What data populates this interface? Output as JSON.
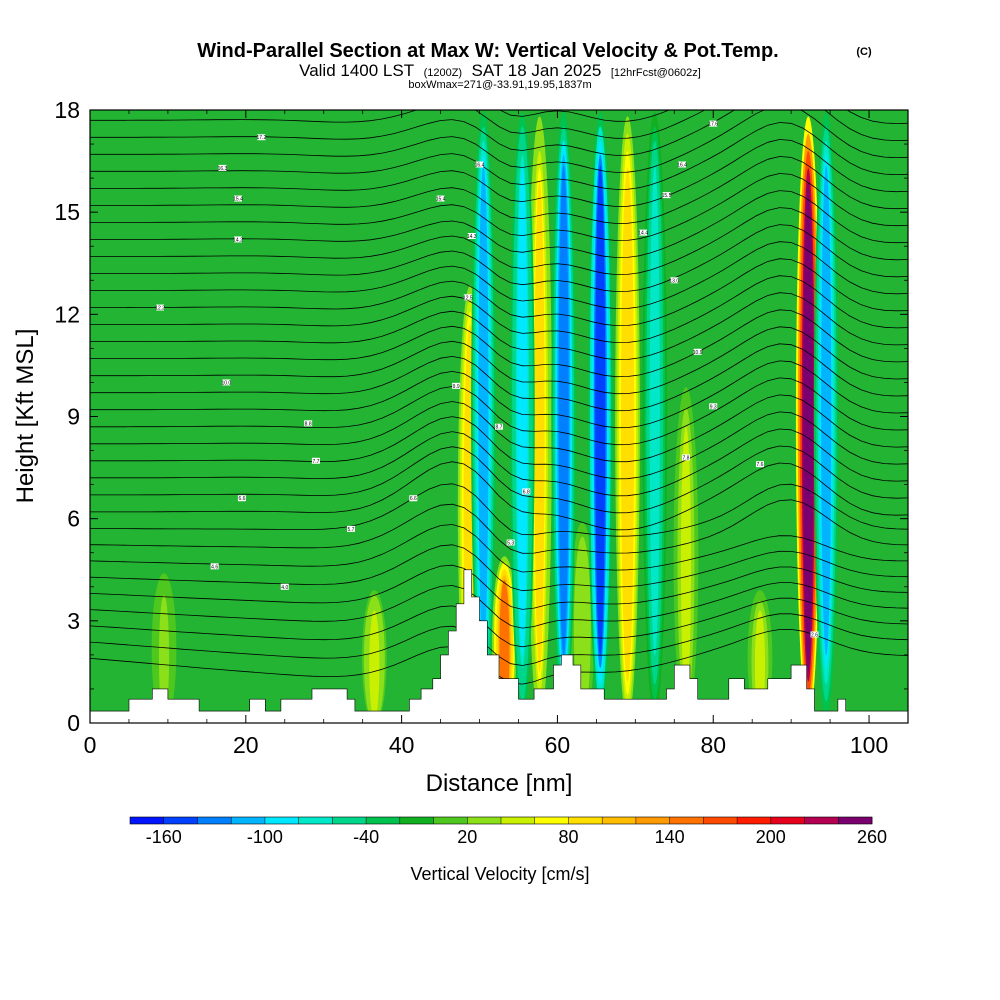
{
  "chart_data": {
    "type": "heatmap",
    "title": "Wind-Parallel Section at Max W: Vertical Velocity & Pot.Temp.",
    "title_mark": "(C)",
    "subtitle": {
      "valid": "Valid 1400 LST",
      "zulu": "(1200Z)",
      "date": "SAT 18 Jan 2025",
      "forecast": "[12hrFcst@0602z]"
    },
    "note": "boxWmax=271@-33.91,19.95,1837m",
    "xlabel": "Distance [nm]",
    "ylabel": "Height [Kft MSL]",
    "xlim": [
      0,
      105
    ],
    "ylim": [
      0,
      18
    ],
    "x_ticks": [
      0,
      20,
      40,
      60,
      80,
      100
    ],
    "y_ticks": [
      0,
      3,
      6,
      9,
      12,
      15,
      18
    ],
    "colorbar": {
      "title": "Vertical Velocity [cm/s]",
      "tick_labels": [
        "-160",
        "-100",
        "-40",
        "20",
        "80",
        "140",
        "200",
        "260"
      ],
      "colors": [
        "#0015ff",
        "#0040ff",
        "#0080ff",
        "#00b4ff",
        "#00e8ff",
        "#00e8c8",
        "#00d68a",
        "#00c24e",
        "#10b020",
        "#4ec81e",
        "#8ce01a",
        "#c8f000",
        "#ffff00",
        "#ffde00",
        "#ffbc00",
        "#ff9a00",
        "#ff7200",
        "#ff4a00",
        "#ff1c00",
        "#e6001e",
        "#b40050",
        "#7a0070"
      ]
    },
    "updrafts": [
      {
        "x": 9.5,
        "ymax": 4.5,
        "w": 20
      },
      {
        "x": 36.5,
        "ymax": 4.0,
        "w": 45
      },
      {
        "x": 48.8,
        "ymax": 13.0,
        "w": 95
      },
      {
        "x": 53.2,
        "ymax": 5.0,
        "w": 140
      },
      {
        "x": 57.7,
        "ymax": 18.0,
        "w": 85
      },
      {
        "x": 63.2,
        "ymax": 6.0,
        "w": 35
      },
      {
        "x": 69.0,
        "ymax": 18.0,
        "w": 95
      },
      {
        "x": 76.5,
        "ymax": 10.0,
        "w": 40
      },
      {
        "x": 86.0,
        "ymax": 4.0,
        "w": 40
      },
      {
        "x": 92.2,
        "ymax": 18.0,
        "w": 271
      }
    ],
    "downdrafts": [
      {
        "x": 50.5,
        "ymax": 18.0,
        "w": -110
      },
      {
        "x": 55.5,
        "ymax": 18.0,
        "w": -90
      },
      {
        "x": 60.8,
        "ymax": 18.0,
        "w": -130
      },
      {
        "x": 65.5,
        "ymax": 18.0,
        "w": -150
      },
      {
        "x": 72.5,
        "ymax": 18.0,
        "w": -70
      },
      {
        "x": 94.5,
        "ymax": 18.0,
        "w": -110
      }
    ],
    "isentrope_labels": [
      "17.2",
      "16.3",
      "15.4",
      "14.2",
      "12.2",
      "10.0",
      "8.8",
      "7.7",
      "6.6",
      "5.7",
      "4.6",
      "4.0",
      "16.4",
      "15.4",
      "14.3",
      "12.5",
      "9.9",
      "8.7",
      "6.8",
      "6.6",
      "5.3",
      "17.6",
      "16.4",
      "15.5",
      "14.4",
      "13.0",
      "10.9",
      "9.3",
      "7.8",
      "7.6",
      "2.6"
    ]
  }
}
